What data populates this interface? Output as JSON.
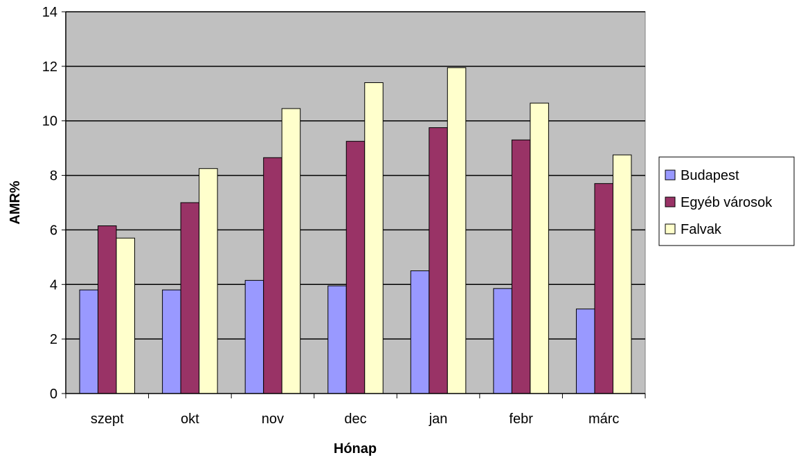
{
  "chart_data": {
    "type": "bar",
    "categories": [
      "szept",
      "okt",
      "nov",
      "dec",
      "jan",
      "febr",
      "márc"
    ],
    "series": [
      {
        "name": "Budapest",
        "color": "#9999ff",
        "values": [
          3.8,
          3.8,
          4.15,
          3.95,
          4.5,
          3.85,
          3.1
        ]
      },
      {
        "name": "Egyéb városok",
        "color": "#993366",
        "values": [
          6.15,
          7.0,
          8.65,
          9.25,
          9.75,
          9.3,
          7.7
        ]
      },
      {
        "name": "Falvak",
        "color": "#ffffcc",
        "values": [
          5.7,
          8.25,
          10.45,
          11.4,
          11.95,
          10.65,
          8.75
        ]
      }
    ],
    "xlabel": "Hónap",
    "ylabel": "AMR%",
    "ylim": [
      0,
      14
    ],
    "yticks": [
      0,
      2,
      4,
      6,
      8,
      10,
      12,
      14
    ],
    "grid": true,
    "legend_position": "right",
    "plot_background": "#c0c0c0"
  }
}
